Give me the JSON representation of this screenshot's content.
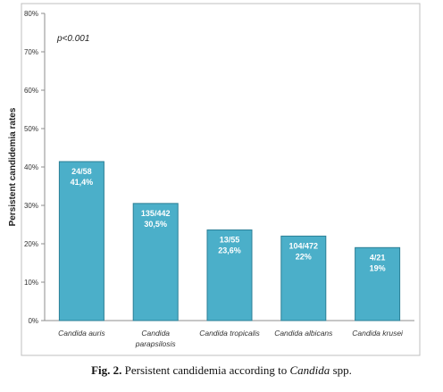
{
  "chart_data": {
    "type": "bar",
    "ylabel": "Persistent candidemia rates",
    "xlabel": "",
    "annotation": "p<0.001",
    "ylim": [
      0,
      80
    ],
    "yticks": [
      "0%",
      "10%",
      "20%",
      "30%",
      "40%",
      "50%",
      "60%",
      "70%",
      "80%"
    ],
    "grid": false,
    "categories": [
      [
        "Candida auris"
      ],
      [
        "Candida",
        "parapsilosis"
      ],
      [
        "Candida tropicalis"
      ],
      [
        "Candida albicans"
      ],
      [
        "Candida krusei"
      ]
    ],
    "values": [
      41.4,
      30.5,
      23.6,
      22,
      19
    ],
    "bar_labels": [
      [
        "24/58",
        "41,4%"
      ],
      [
        "135/442",
        "30,5%"
      ],
      [
        "13/55",
        "23,6%"
      ],
      [
        "104/472",
        "22%"
      ],
      [
        "4/21",
        "19%"
      ]
    ],
    "bar_color": "#4bafc9",
    "bar_edge_color": "#2b7f96"
  },
  "caption": {
    "label": "Fig. 2.",
    "text_before": "Persistent candidemia according to",
    "text_italic": "Candida",
    "text_after": "spp."
  }
}
